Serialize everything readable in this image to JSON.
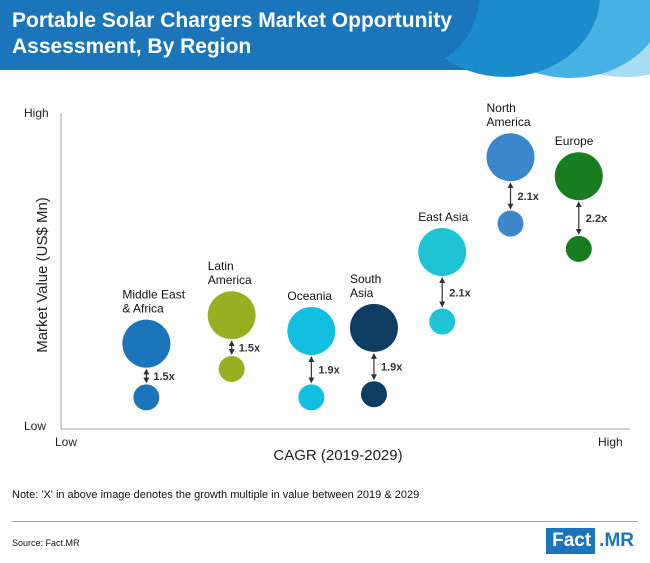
{
  "header": {
    "title": "Portable Solar Chargers Market Opportunity Assessment, By Region"
  },
  "chart_data": {
    "type": "bubble",
    "title": "Portable Solar Chargers Market Opportunity Assessment, By Region",
    "xlabel": "CAGR (2019-2029)",
    "ylabel": "Market Value (US$ Mn)",
    "x_ticks": {
      "low": "Low",
      "high": "High"
    },
    "y_ticks": {
      "low": "Low",
      "high": "High"
    },
    "xlim": [
      0,
      100
    ],
    "ylim": [
      0,
      100
    ],
    "series": [
      {
        "name": "Middle East & Africa",
        "label_lines": [
          "Middle East",
          "& Africa"
        ],
        "color": "#1b75bb",
        "x": 15,
        "y_2029": 27,
        "y_2019": 10,
        "size_2029": 24,
        "size_2019": 13,
        "multiple": "1.5x"
      },
      {
        "name": "Latin America",
        "label_lines": [
          "Latin",
          "America"
        ],
        "color": "#97b022",
        "x": 30,
        "y_2029": 36,
        "y_2019": 19,
        "size_2029": 24,
        "size_2019": 13,
        "multiple": "1.5x"
      },
      {
        "name": "Oceania",
        "label_lines": [
          "Oceania"
        ],
        "color": "#12bfe0",
        "x": 44,
        "y_2029": 31,
        "y_2019": 10,
        "size_2029": 24,
        "size_2019": 13,
        "multiple": "1.9x"
      },
      {
        "name": "South Asia",
        "label_lines": [
          "South",
          "Asia"
        ],
        "color": "#0d3d63",
        "x": 55,
        "y_2029": 32,
        "y_2019": 11,
        "size_2029": 24,
        "size_2019": 13,
        "multiple": "1.9x"
      },
      {
        "name": "East Asia",
        "label_lines": [
          "East Asia"
        ],
        "color": "#1dc4d4",
        "x": 67,
        "y_2029": 56,
        "y_2019": 34,
        "size_2029": 24,
        "size_2019": 13,
        "multiple": "2.1x"
      },
      {
        "name": "North America",
        "label_lines": [
          "North",
          "America"
        ],
        "color": "#3c87cc",
        "x": 79,
        "y_2029": 86,
        "y_2019": 65,
        "size_2029": 24,
        "size_2019": 13,
        "multiple": "2.1x"
      },
      {
        "name": "Europe",
        "label_lines": [
          "Europe"
        ],
        "color": "#177d1f",
        "x": 91,
        "y_2029": 80,
        "y_2019": 57,
        "size_2029": 24,
        "size_2019": 13,
        "multiple": "2.2x"
      }
    ]
  },
  "note": "Note: 'X' in above image denotes the growth multiple in value between 2019 & 2029",
  "source": "Source: Fact.MR",
  "logo": {
    "left": "Fact",
    "right": ".MR"
  }
}
